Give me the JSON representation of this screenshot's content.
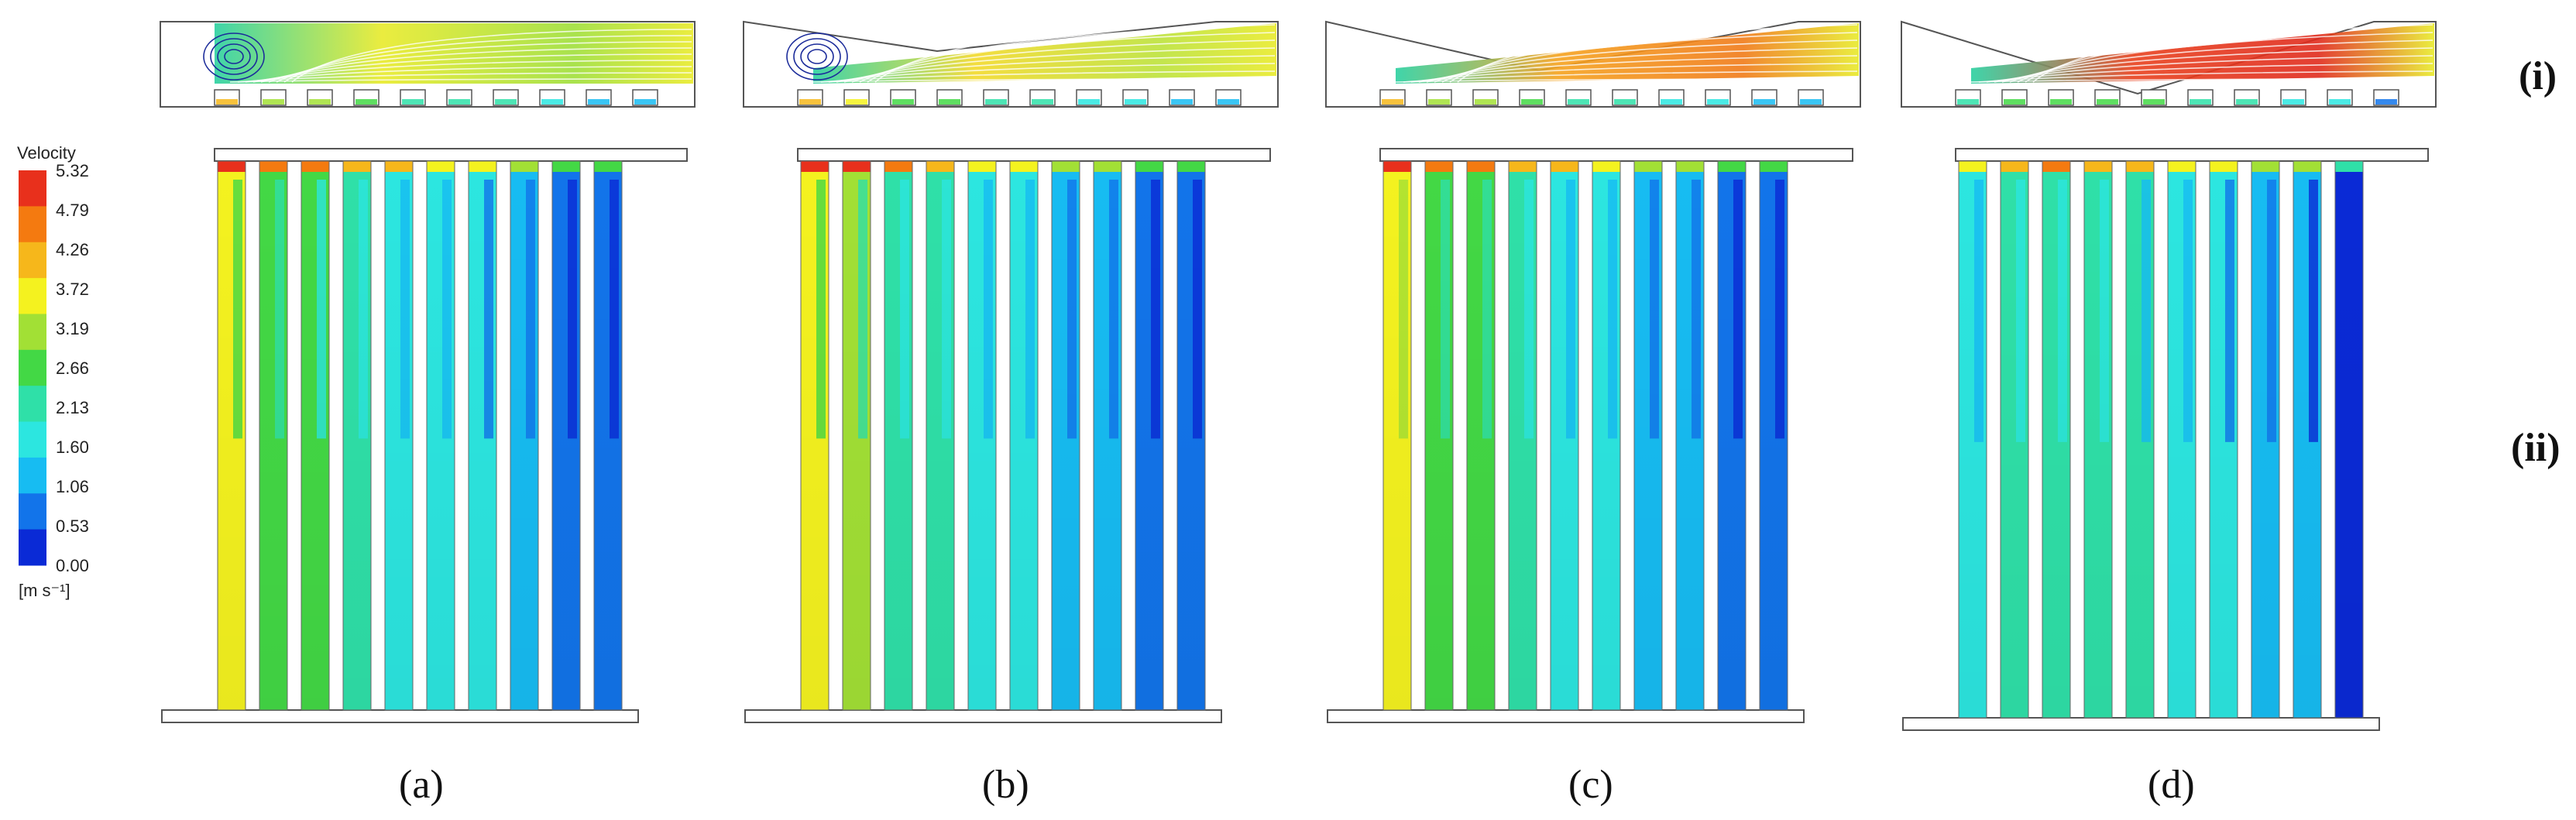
{
  "colorbar": {
    "title": "Velocity",
    "unit": "[m s⁻¹]",
    "ticks": [
      "5.32",
      "4.79",
      "4.26",
      "3.72",
      "3.19",
      "2.66",
      "2.13",
      "1.60",
      "1.06",
      "0.53",
      "0.00"
    ],
    "colors": [
      "#e8301c",
      "#f47a10",
      "#f6b71b",
      "#f4f21f",
      "#a2e035",
      "#43d845",
      "#2fe0a8",
      "#2ce6e0",
      "#17bcf2",
      "#1274ea",
      "#0a2ad6"
    ]
  },
  "row_labels": {
    "top": "(i)",
    "bottom": "(ii)"
  },
  "panels": [
    {
      "label": "(a)",
      "channel_velocities": [
        3.4,
        2.7,
        2.5,
        2.1,
        1.9,
        1.7,
        1.5,
        1.2,
        0.9,
        0.8
      ]
    },
    {
      "label": "(b)",
      "channel_velocities": [
        3.5,
        3.0,
        2.4,
        2.1,
        1.8,
        1.6,
        1.3,
        1.1,
        0.9,
        0.8
      ]
    },
    {
      "label": "(c)",
      "channel_velocities": [
        3.6,
        2.8,
        2.6,
        2.3,
        1.9,
        1.6,
        1.3,
        1.1,
        0.9,
        0.8
      ]
    },
    {
      "label": "(d)",
      "channel_velocities": [
        1.8,
        2.2,
        2.4,
        2.3,
        2.0,
        1.7,
        1.5,
        1.3,
        1.0,
        0.4
      ]
    }
  ]
}
